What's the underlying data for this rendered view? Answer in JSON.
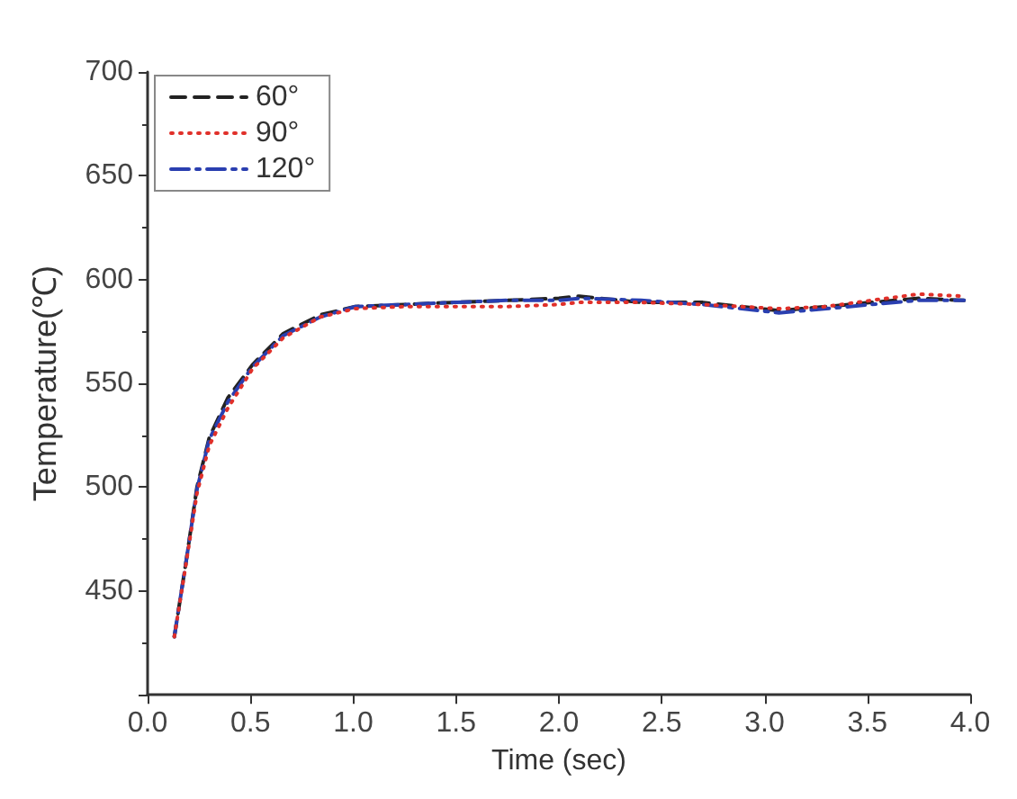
{
  "chart_data": {
    "type": "line",
    "xlabel": "Time (sec)",
    "ylabel": "Temperature(℃)",
    "xlim": [
      0,
      4
    ],
    "xticks": [
      {
        "value": 0,
        "label": "0.0"
      },
      0.5,
      {
        "value": 1,
        "label": "1.0"
      },
      1.5,
      {
        "value": 2,
        "label": "2.0"
      },
      2.5,
      {
        "value": 3,
        "label": "3.0"
      },
      3.5,
      {
        "value": 4,
        "label": "4.0"
      }
    ],
    "ylim": [
      400,
      700
    ],
    "yticks": [
      {
        "value": 400,
        "label": null
      },
      450,
      500,
      550,
      600,
      650,
      700
    ],
    "legend": "top left",
    "grid": false,
    "marker": "none",
    "series": [
      {
        "name": "60°",
        "color": "#222222",
        "line_style": "dashed",
        "x": [
          0.13,
          0.19,
          0.24,
          0.3,
          0.39,
          0.51,
          0.66,
          0.84,
          1.01,
          1.25,
          1.49,
          1.75,
          2.0,
          2.1,
          2.4,
          2.7,
          3.07,
          3.3,
          3.52,
          3.75,
          3.97
        ],
        "values": [
          428,
          466,
          500,
          524,
          543,
          559,
          574,
          583,
          587,
          588,
          589,
          590,
          591,
          592,
          589,
          589,
          585,
          587,
          589,
          591,
          590
        ]
      },
      {
        "name": "90°",
        "color": "#e0302a",
        "line_style": "dotted",
        "x": [
          0.13,
          0.19,
          0.24,
          0.3,
          0.39,
          0.51,
          0.66,
          0.84,
          1.01,
          1.25,
          1.49,
          1.75,
          2.0,
          2.1,
          2.4,
          2.7,
          3.07,
          3.3,
          3.52,
          3.75,
          3.97
        ],
        "values": [
          428,
          465,
          497,
          520,
          538,
          557,
          572,
          582,
          586,
          587,
          587,
          587,
          588,
          589,
          589,
          588,
          586,
          587,
          590,
          593,
          592
        ]
      },
      {
        "name": "120°",
        "color": "#2a3fb0",
        "line_style": "dashdot",
        "x": [
          0.13,
          0.19,
          0.24,
          0.3,
          0.39,
          0.51,
          0.66,
          0.84,
          1.01,
          1.25,
          1.49,
          1.75,
          2.0,
          2.1,
          2.4,
          2.7,
          3.07,
          3.3,
          3.52,
          3.75,
          3.97
        ],
        "values": [
          428,
          466,
          499,
          523,
          541,
          558,
          573,
          582,
          587,
          588,
          589,
          590,
          590,
          591,
          590,
          588,
          584,
          586,
          588,
          590,
          590
        ]
      }
    ]
  }
}
